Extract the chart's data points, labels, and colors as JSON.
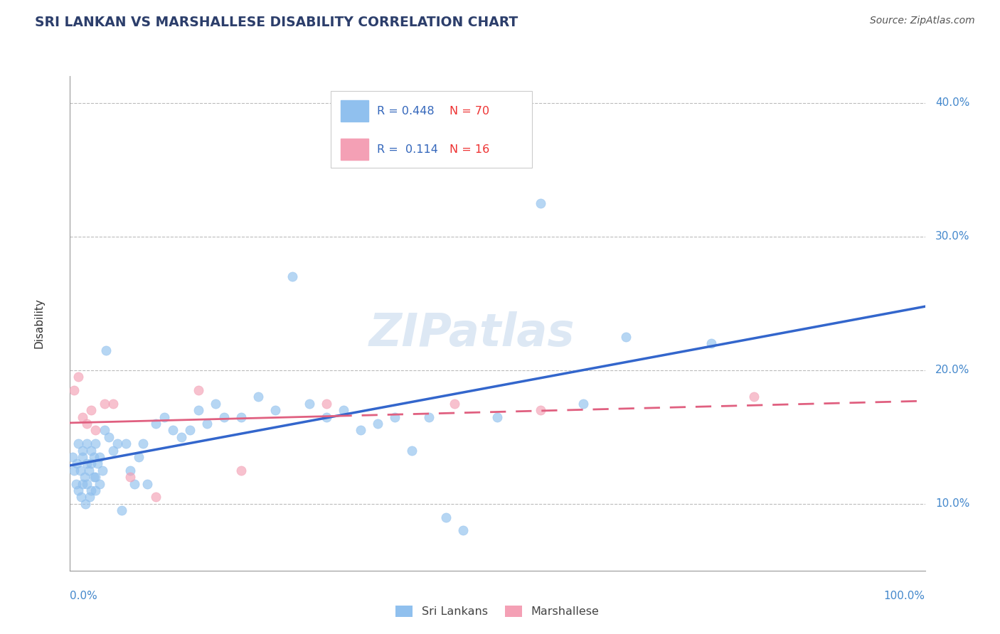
{
  "title": "SRI LANKAN VS MARSHALLESE DISABILITY CORRELATION CHART",
  "source": "Source: ZipAtlas.com",
  "ylabel": "Disability",
  "xlim": [
    0.0,
    100.0
  ],
  "ylim": [
    5.0,
    42.0
  ],
  "yticks": [
    10.0,
    20.0,
    30.0,
    40.0
  ],
  "ytick_labels": [
    "10.0%",
    "20.0%",
    "30.0%",
    "40.0%"
  ],
  "xtick_left": "0.0%",
  "xtick_right": "100.0%",
  "background_color": "#ffffff",
  "sri_lanka_color": "#90C0EE",
  "marshall_color": "#F4A0B5",
  "sri_lanka_line_color": "#3366CC",
  "marshall_line_color": "#E06080",
  "grid_color": "#bbbbbb",
  "R_sri": 0.448,
  "N_sri": 70,
  "R_marsh": 0.114,
  "N_marsh": 16,
  "sri_lanka_x": [
    0.3,
    0.5,
    0.7,
    0.8,
    1.0,
    1.0,
    1.2,
    1.3,
    1.5,
    1.5,
    1.5,
    1.7,
    1.8,
    2.0,
    2.0,
    2.0,
    2.2,
    2.3,
    2.5,
    2.5,
    2.5,
    2.8,
    2.8,
    3.0,
    3.0,
    3.0,
    3.2,
    3.5,
    3.5,
    3.8,
    4.0,
    4.2,
    4.5,
    5.0,
    5.5,
    6.0,
    6.5,
    7.0,
    7.5,
    8.0,
    8.5,
    9.0,
    10.0,
    11.0,
    12.0,
    13.0,
    14.0,
    15.0,
    16.0,
    17.0,
    18.0,
    20.0,
    22.0,
    24.0,
    26.0,
    28.0,
    30.0,
    32.0,
    34.0,
    36.0,
    38.0,
    40.0,
    42.0,
    44.0,
    46.0,
    50.0,
    55.0,
    60.0,
    65.0,
    75.0
  ],
  "sri_lanka_y": [
    13.5,
    12.5,
    11.5,
    13.0,
    14.5,
    11.0,
    12.5,
    10.5,
    14.0,
    11.5,
    13.5,
    12.0,
    10.0,
    13.0,
    14.5,
    11.5,
    12.5,
    10.5,
    14.0,
    13.0,
    11.0,
    13.5,
    12.0,
    12.0,
    11.0,
    14.5,
    13.0,
    13.5,
    11.5,
    12.5,
    15.5,
    21.5,
    15.0,
    14.0,
    14.5,
    9.5,
    14.5,
    12.5,
    11.5,
    13.5,
    14.5,
    11.5,
    16.0,
    16.5,
    15.5,
    15.0,
    15.5,
    17.0,
    16.0,
    17.5,
    16.5,
    16.5,
    18.0,
    17.0,
    27.0,
    17.5,
    16.5,
    17.0,
    15.5,
    16.0,
    16.5,
    14.0,
    16.5,
    9.0,
    8.0,
    16.5,
    32.5,
    17.5,
    22.5,
    22.0
  ],
  "marshall_x": [
    0.5,
    1.0,
    1.5,
    2.0,
    2.5,
    3.0,
    4.0,
    5.0,
    7.0,
    10.0,
    15.0,
    20.0,
    30.0,
    45.0,
    55.0,
    80.0
  ],
  "marshall_y": [
    18.5,
    19.5,
    16.5,
    16.0,
    17.0,
    15.5,
    17.5,
    17.5,
    12.0,
    10.5,
    18.5,
    12.5,
    17.5,
    17.5,
    17.0,
    18.0
  ],
  "watermark_text": "ZIPatlas",
  "legend_text_color": "#3366BB",
  "legend_n_color": "#EE3333"
}
